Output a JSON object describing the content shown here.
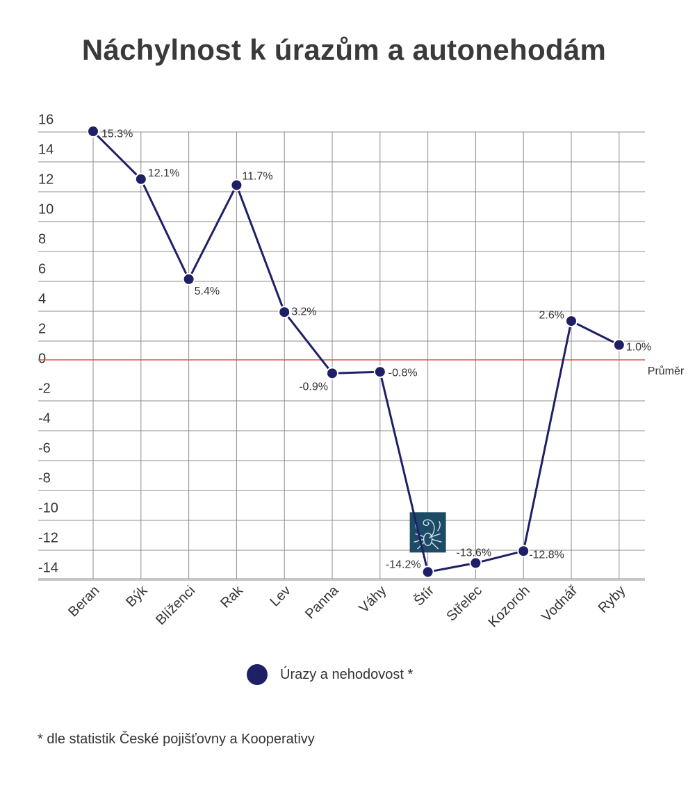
{
  "title": "Náchylnost k úrazům a autonehodám",
  "legend": {
    "label": "Úrazy a nehodovost *"
  },
  "footnote": "* dle statistik České pojišťovny a Kooperativy",
  "colors": {
    "line": "#1f1f66",
    "grid": "#8c8c8c",
    "average": "#e05050",
    "icon_bg": "#1d4b66"
  },
  "chart_data": {
    "type": "line",
    "title": "Náchylnost k úrazům a autonehodám",
    "categories": [
      "Beran",
      "Býk",
      "Blíženci",
      "Rak",
      "Lev",
      "Panna",
      "Váhy",
      "Štír",
      "Střelec",
      "Kozoroh",
      "Vodnář",
      "Ryby"
    ],
    "series": [
      {
        "name": "Úrazy a nehodovost *",
        "values": [
          15.3,
          12.1,
          5.4,
          11.7,
          3.2,
          -0.9,
          -0.8,
          -14.2,
          -13.6,
          -12.8,
          2.6,
          1.0
        ]
      }
    ],
    "data_labels": [
      "15.3%",
      "12.1%",
      "5.4%",
      "11.7%",
      "3.2%",
      "-0.9%",
      "-0.8%",
      "-14.2%",
      "-13.6%",
      "-12.8%",
      "2.6%",
      "1.0%"
    ],
    "y_ticks": [
      16,
      14,
      12,
      10,
      8,
      6,
      4,
      2,
      0,
      -2,
      -4,
      -6,
      -8,
      -10,
      -12,
      -14
    ],
    "ylim": [
      -14,
      16
    ],
    "reference_line": {
      "value": 0,
      "label": "Průměr"
    },
    "highlight_icon": {
      "category": "Štír",
      "icon": "scorpion-icon"
    },
    "grid": true,
    "legend_position": "bottom"
  }
}
